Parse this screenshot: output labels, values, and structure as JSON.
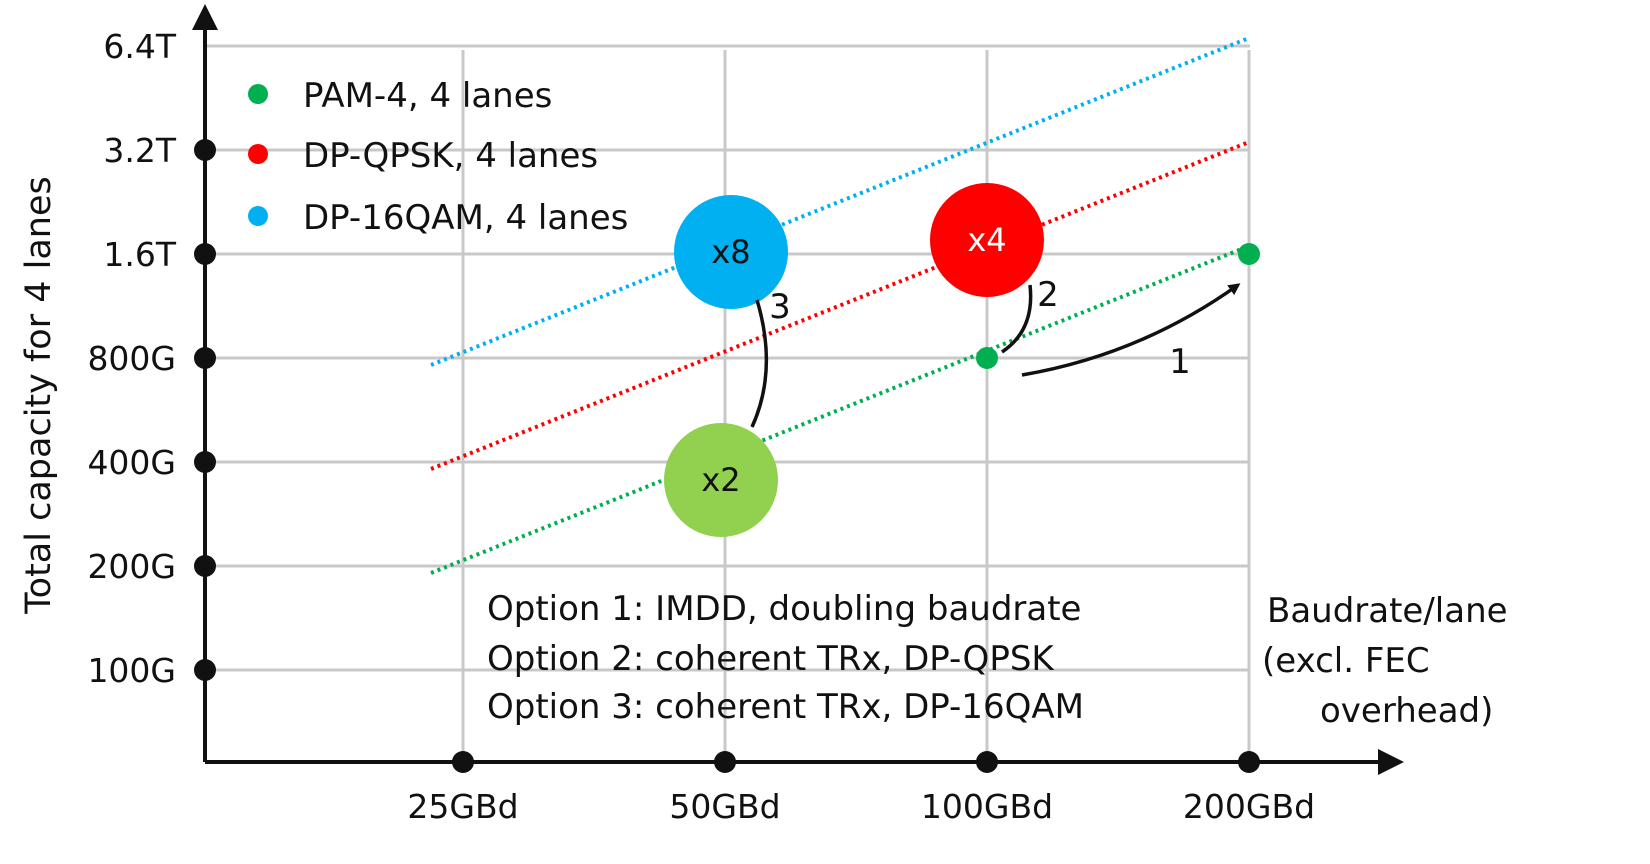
{
  "chart_data": {
    "type": "scatter",
    "title": "",
    "x_axis": {
      "scale": "log2",
      "ticks": [
        {
          "value": 25,
          "label": "25GBd"
        },
        {
          "value": 50,
          "label": "50GBd"
        },
        {
          "value": 100,
          "label": "100GBd"
        },
        {
          "value": 200,
          "label": "200GBd"
        }
      ],
      "title_lines": [
        "Baudrate/lane",
        "(excl. FEC",
        "overhead)"
      ]
    },
    "y_axis": {
      "scale": "log2",
      "ticks": [
        {
          "value": 100,
          "label": "100G"
        },
        {
          "value": 200,
          "label": "200G"
        },
        {
          "value": 400,
          "label": "400G"
        },
        {
          "value": 800,
          "label": "800G"
        },
        {
          "value": 1600,
          "label": "1.6T"
        },
        {
          "value": 3200,
          "label": "3.2T"
        },
        {
          "value": 6400,
          "label": "6.4T"
        }
      ],
      "title": "Total capacity for 4 lanes"
    },
    "grid": true,
    "legend": {
      "placement": "top-left",
      "entries": [
        {
          "label": "PAM-4, 4 lanes",
          "color": "#00b050"
        },
        {
          "label": "DP-QPSK, 4 lanes",
          "color": "#ff0000"
        },
        {
          "label": "DP-16QAM, 4 lanes",
          "color": "#00b0f0"
        }
      ]
    },
    "series": [
      {
        "name": "PAM-4, 4 lanes",
        "color": "#00b050",
        "line": {
          "x": [
            25,
            200
          ],
          "y": [
            200,
            1600
          ]
        },
        "points": [
          {
            "x": 100,
            "y": 800
          },
          {
            "x": 200,
            "y": 1600
          }
        ]
      },
      {
        "name": "DP-QPSK, 4 lanes",
        "color": "#ff0000",
        "line": {
          "x": [
            25,
            200
          ],
          "y": [
            400,
            3200
          ]
        },
        "points": []
      },
      {
        "name": "DP-16QAM, 4 lanes",
        "color": "#00b0f0",
        "line": {
          "x": [
            25,
            200
          ],
          "y": [
            800,
            6400
          ]
        },
        "points": []
      }
    ],
    "bubbles": [
      {
        "x": 50,
        "y": 400,
        "label": "x2",
        "color": "#92d050"
      },
      {
        "x": 50,
        "y": 1600,
        "label": "x8",
        "color": "#00b0f0"
      },
      {
        "x": 100,
        "y": 1600,
        "label": "x4",
        "color": "#ff0000"
      }
    ],
    "annotations": [
      {
        "label": "1",
        "type": "arrow",
        "from": {
          "x": 100,
          "y": 800
        },
        "to": {
          "x": 200,
          "y": 1600
        }
      },
      {
        "label": "2",
        "type": "curve",
        "from": {
          "x": 100,
          "y": 800
        },
        "to": {
          "x": 100,
          "y": 1600
        }
      },
      {
        "label": "3",
        "type": "curve",
        "from": {
          "x": 50,
          "y": 400
        },
        "to": {
          "x": 50,
          "y": 1600
        }
      }
    ],
    "notes": [
      "Option 1: IMDD, doubling baudrate",
      "Option 2: coherent TRx, DP-QPSK",
      "Option 3: coherent TRx, DP-16QAM"
    ]
  }
}
